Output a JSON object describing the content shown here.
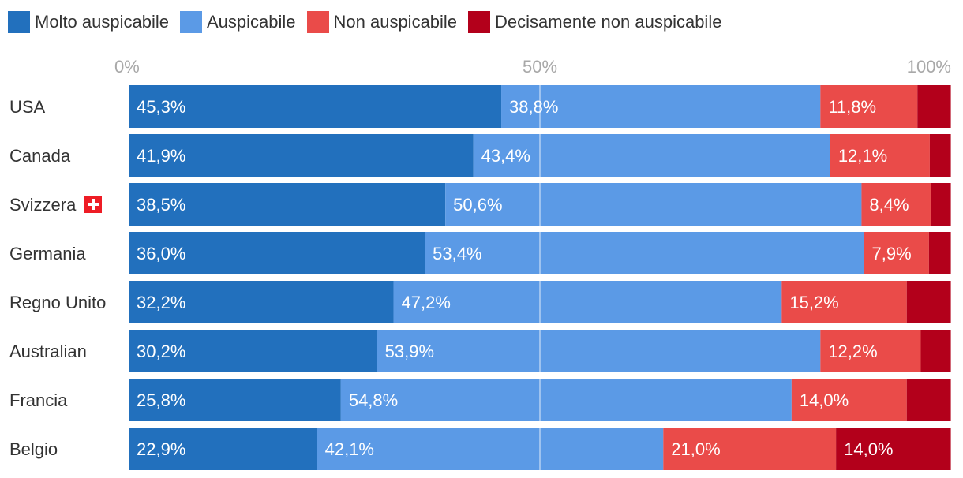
{
  "chart_data": {
    "type": "bar",
    "orientation": "horizontal",
    "stacked": true,
    "title": "",
    "xlabel": "",
    "ylabel": "",
    "xlim": [
      0,
      100
    ],
    "xticks": [
      0,
      50,
      100
    ],
    "xtick_labels": [
      "0%",
      "50%",
      "100%"
    ],
    "grid": true,
    "legend_position": "top-left",
    "categories": [
      "USA",
      "Canada",
      "Svizzera",
      "Germania",
      "Regno Unito",
      "Australian",
      "Francia",
      "Belgio"
    ],
    "flag_category": "Svizzera",
    "series": [
      {
        "name": "Molto auspicabile",
        "color": "#2270bd",
        "values": [
          45.3,
          41.9,
          38.5,
          36.0,
          32.2,
          30.2,
          25.8,
          22.9
        ],
        "labels": [
          "45,3%",
          "41,9%",
          "38,5%",
          "36,0%",
          "32,2%",
          "30,2%",
          "25,8%",
          "22,9%"
        ]
      },
      {
        "name": "Auspicabile",
        "color": "#5b9ae6",
        "values": [
          38.8,
          43.4,
          50.6,
          53.4,
          47.2,
          53.9,
          54.8,
          42.1
        ],
        "labels": [
          "38,8%",
          "43,4%",
          "50,6%",
          "53,4%",
          "47,2%",
          "53,9%",
          "54,8%",
          "42,1%"
        ]
      },
      {
        "name": "Non auspicabile",
        "color": "#ea4b49",
        "values": [
          11.8,
          12.1,
          8.4,
          7.9,
          15.2,
          12.2,
          14.0,
          21.0
        ],
        "labels": [
          "11,8%",
          "12,1%",
          "8,4%",
          "7,9%",
          "15,2%",
          "12,2%",
          "14,0%",
          "21,0%"
        ]
      },
      {
        "name": "Decisamente non auspicabile",
        "color": "#b3001b",
        "values": [
          4.1,
          2.6,
          2.5,
          2.7,
          5.4,
          3.7,
          5.4,
          14.0
        ],
        "labels": [
          "",
          "",
          "",
          "",
          "",
          "",
          "",
          "14,0%"
        ]
      }
    ]
  }
}
